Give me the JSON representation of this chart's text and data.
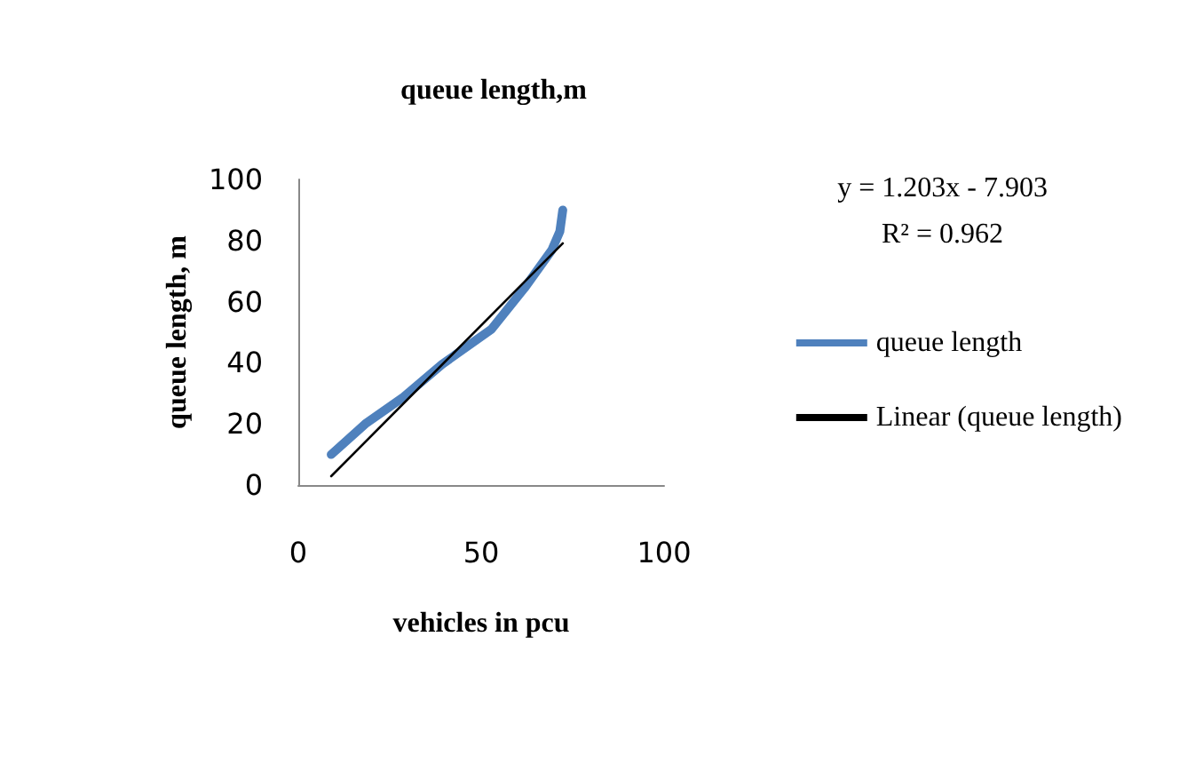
{
  "chart_data": {
    "type": "line",
    "title": "queue length,m",
    "xlabel": "vehicles in pcu",
    "ylabel": "queue length, m",
    "xlim": [
      0,
      100
    ],
    "xticks": [
      0,
      50,
      100
    ],
    "ylim": [
      0,
      100
    ],
    "yticks": [
      0,
      20,
      40,
      60,
      80,
      100
    ],
    "grid": false,
    "legend": "right",
    "marker": "none",
    "series": [
      {
        "name": "queue length",
        "color": "#4f81bd",
        "x": [
          9,
          18.3,
          28.8,
          39.3,
          52.8,
          61.8,
          69.3,
          71.5,
          72.3
        ],
        "values": [
          10,
          20,
          28.8,
          39.5,
          51,
          64.4,
          76.9,
          83,
          90
        ]
      },
      {
        "name": "Linear (queue length)",
        "color": "#000000",
        "x": [
          9,
          72.3
        ],
        "values": [
          2.9,
          79.1
        ]
      }
    ],
    "annotations": [
      "y = 1.203x - 7.903",
      "R² = 0.962"
    ]
  }
}
